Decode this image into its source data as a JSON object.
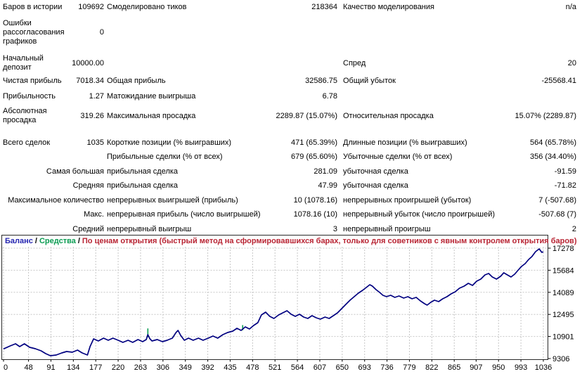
{
  "report": {
    "rows": [
      {
        "a": {
          "l": "Баров в истории",
          "v": "109692"
        },
        "b": {
          "l": "Смоделировано тиков",
          "v": "218364"
        },
        "c": {
          "l": "Качество моделирования",
          "v": "n/a"
        }
      },
      {
        "a": {
          "l": "Ошибки рассогласования графиков",
          "v": "0"
        },
        "b": {
          "l": "",
          "v": ""
        },
        "c": {
          "l": "",
          "v": ""
        }
      },
      {
        "a": {
          "l": "Начальный депозит",
          "v": "10000.00"
        },
        "b": {
          "l": "",
          "v": ""
        },
        "c": {
          "l": "Спред",
          "v": "20"
        }
      },
      {
        "a": {
          "l": "Чистая прибыль",
          "v": "7018.34"
        },
        "b": {
          "l": "Общая прибыль",
          "v": "32586.75"
        },
        "c": {
          "l": "Общий убыток",
          "v": "-25568.41"
        }
      },
      {
        "a": {
          "l": "Прибыльность",
          "v": "1.27"
        },
        "b": {
          "l": "Матожидание выигрыша",
          "v": "6.78"
        },
        "c": {
          "l": "",
          "v": ""
        }
      },
      {
        "a": {
          "l": "Абсолютная просадка",
          "v": "319.26"
        },
        "b": {
          "l": "Максимальная просадка",
          "v": "2289.87 (15.07%)"
        },
        "c": {
          "l": "Относительная просадка",
          "v": "15.07% (2289.87)"
        }
      },
      {
        "a": {
          "l": "Всего сделок",
          "v": "1035"
        },
        "b": {
          "l": "Короткие позиции (% выигравших)",
          "v": "471 (65.39%)"
        },
        "c": {
          "l": "Длинные позиции (% выигравших)",
          "v": "564 (65.78%)"
        }
      },
      {
        "a": {
          "l": "",
          "v": ""
        },
        "b": {
          "l": "Прибыльные сделки (% от всех)",
          "v": "679 (65.60%)"
        },
        "c": {
          "l": "Убыточные сделки (% от всех)",
          "v": "356 (34.40%)"
        }
      },
      {
        "a": {
          "l": "",
          "v": "Самая большая"
        },
        "b": {
          "l": "прибыльная сделка",
          "v": "281.09"
        },
        "c": {
          "l": "убыточная сделка",
          "v": "-91.59"
        }
      },
      {
        "a": {
          "l": "",
          "v": "Средняя"
        },
        "b": {
          "l": "прибыльная сделка",
          "v": "47.99"
        },
        "c": {
          "l": "убыточная сделка",
          "v": "-71.82"
        }
      },
      {
        "a": {
          "l": "",
          "v": "Максимальное количество"
        },
        "b": {
          "l": "непрерывных выигрышей (прибыль)",
          "v": "10 (1078.16)"
        },
        "c": {
          "l": "непрерывных проигрышей (убыток)",
          "v": "7 (-507.68)"
        }
      },
      {
        "a": {
          "l": "",
          "v": "Макс."
        },
        "b": {
          "l": "непрерывная прибыль (число выигрышей)",
          "v": "1078.16 (10)"
        },
        "c": {
          "l": "непрерывный убыток (число проигрышей)",
          "v": "-507.68 (7)"
        }
      },
      {
        "a": {
          "l": "",
          "v": "Средний"
        },
        "b": {
          "l": "непрерывный выигрыш",
          "v": "3"
        },
        "c": {
          "l": "непрерывный проигрыш",
          "v": "2"
        }
      }
    ]
  },
  "chart": {
    "legend": {
      "balance": "Баланс",
      "equity": "Средства",
      "separator": "/"
    },
    "subtitle": "По ценам открытия (быстрый метод на сформировавшихся барах, только для советников с явным контролем открытия баров)",
    "colors": {
      "balance_line": "#000080",
      "equity_line": "#089b50",
      "balance_label": "#2424b0",
      "equity_label": "#089b50",
      "subtitle": "#b82433",
      "grid": "#c6c6c6",
      "border": "#2a2a2a"
    }
  },
  "chart_data": {
    "type": "line",
    "title": "Баланс / Средства / По ценам открытия (быстрый метод на сформировавшихся барах, только для советников с явным контролем открытия баров)",
    "x_ticks": [
      0,
      48,
      91,
      134,
      177,
      220,
      263,
      306,
      349,
      392,
      435,
      478,
      521,
      564,
      607,
      650,
      693,
      736,
      779,
      822,
      865,
      907,
      950,
      993,
      1036
    ],
    "y_ticks": [
      9306,
      10901,
      12495,
      14089,
      15684,
      17278
    ],
    "xlim": [
      0,
      1036
    ],
    "ylim": [
      9306,
      17278
    ],
    "grid": true,
    "legend_position": "top-left",
    "series": [
      {
        "name": "Баланс",
        "color": "#000080",
        "points": [
          [
            0,
            10000
          ],
          [
            13,
            10220
          ],
          [
            23,
            10372
          ],
          [
            31,
            10169
          ],
          [
            40,
            10372
          ],
          [
            50,
            10118
          ],
          [
            61,
            10017
          ],
          [
            72,
            9865
          ],
          [
            81,
            9662
          ],
          [
            90,
            9509
          ],
          [
            101,
            9560
          ],
          [
            112,
            9712
          ],
          [
            121,
            9814
          ],
          [
            132,
            9763
          ],
          [
            142,
            9915
          ],
          [
            151,
            9712
          ],
          [
            161,
            9560
          ],
          [
            166,
            10169
          ],
          [
            173,
            10728
          ],
          [
            182,
            10575
          ],
          [
            192,
            10779
          ],
          [
            201,
            10626
          ],
          [
            210,
            10779
          ],
          [
            220,
            10626
          ],
          [
            229,
            10474
          ],
          [
            239,
            10626
          ],
          [
            248,
            10474
          ],
          [
            258,
            10677
          ],
          [
            267,
            10525
          ],
          [
            274,
            10677
          ],
          [
            277,
            11033
          ],
          [
            281,
            10728
          ],
          [
            285,
            10575
          ],
          [
            295,
            10677
          ],
          [
            305,
            10525
          ],
          [
            314,
            10626
          ],
          [
            324,
            10779
          ],
          [
            331,
            11185
          ],
          [
            335,
            11337
          ],
          [
            340,
            10982
          ],
          [
            347,
            10626
          ],
          [
            355,
            10779
          ],
          [
            364,
            10626
          ],
          [
            374,
            10779
          ],
          [
            383,
            10626
          ],
          [
            393,
            10779
          ],
          [
            402,
            10931
          ],
          [
            411,
            10779
          ],
          [
            421,
            11033
          ],
          [
            430,
            11185
          ],
          [
            440,
            11287
          ],
          [
            448,
            11490
          ],
          [
            456,
            11337
          ],
          [
            464,
            11591
          ],
          [
            472,
            11439
          ],
          [
            480,
            11693
          ],
          [
            488,
            11896
          ],
          [
            495,
            12454
          ],
          [
            503,
            12657
          ],
          [
            511,
            12352
          ],
          [
            519,
            12200
          ],
          [
            528,
            12454
          ],
          [
            536,
            12606
          ],
          [
            544,
            12758
          ],
          [
            552,
            12505
          ],
          [
            560,
            12352
          ],
          [
            568,
            12505
          ],
          [
            576,
            12302
          ],
          [
            584,
            12200
          ],
          [
            592,
            12403
          ],
          [
            600,
            12251
          ],
          [
            608,
            12149
          ],
          [
            617,
            12302
          ],
          [
            625,
            12200
          ],
          [
            633,
            12403
          ],
          [
            641,
            12606
          ],
          [
            649,
            12911
          ],
          [
            657,
            13216
          ],
          [
            665,
            13521
          ],
          [
            673,
            13775
          ],
          [
            681,
            14029
          ],
          [
            689,
            14232
          ],
          [
            696,
            14435
          ],
          [
            703,
            14638
          ],
          [
            708,
            14536
          ],
          [
            715,
            14283
          ],
          [
            722,
            14079
          ],
          [
            728,
            13876
          ],
          [
            735,
            13775
          ],
          [
            743,
            13876
          ],
          [
            751,
            13724
          ],
          [
            759,
            13826
          ],
          [
            768,
            13673
          ],
          [
            776,
            13775
          ],
          [
            784,
            13622
          ],
          [
            792,
            13724
          ],
          [
            800,
            13470
          ],
          [
            808,
            13267
          ],
          [
            813,
            13165
          ],
          [
            820,
            13368
          ],
          [
            827,
            13521
          ],
          [
            835,
            13419
          ],
          [
            843,
            13622
          ],
          [
            851,
            13775
          ],
          [
            859,
            13978
          ],
          [
            867,
            14130
          ],
          [
            875,
            14384
          ],
          [
            884,
            14536
          ],
          [
            892,
            14740
          ],
          [
            900,
            14587
          ],
          [
            908,
            14892
          ],
          [
            916,
            15044
          ],
          [
            924,
            15349
          ],
          [
            931,
            15450
          ],
          [
            938,
            15196
          ],
          [
            946,
            15044
          ],
          [
            954,
            15247
          ],
          [
            960,
            15501
          ],
          [
            967,
            15349
          ],
          [
            974,
            15196
          ],
          [
            981,
            15399
          ],
          [
            988,
            15704
          ],
          [
            994,
            15958
          ],
          [
            1001,
            16161
          ],
          [
            1008,
            16465
          ],
          [
            1014,
            16669
          ],
          [
            1021,
            17024
          ],
          [
            1028,
            17227
          ],
          [
            1033,
            16973
          ],
          [
            1036,
            17018.34
          ]
        ]
      },
      {
        "name": "Средства",
        "color": "#089b50",
        "marks": [
          [
            277,
            10850,
            11480
          ],
          [
            459,
            11350,
            11720
          ]
        ]
      }
    ]
  }
}
